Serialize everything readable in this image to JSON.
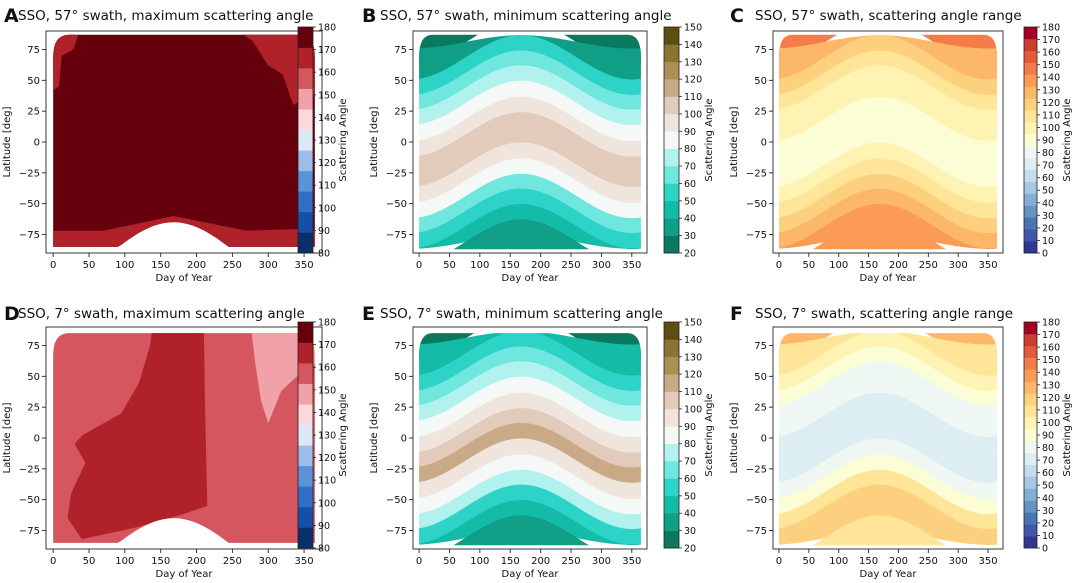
{
  "chart_data": [
    {
      "type": "heatmap",
      "panel_letter": "A",
      "title": "SSO, 57° swath, maximum scattering angle",
      "xlabel": "Day of Year",
      "ylabel": "Latitude [deg]",
      "xticks": [
        "0",
        "50",
        "100",
        "150",
        "200",
        "250",
        "300",
        "350"
      ],
      "yticks": [
        "75",
        "50",
        "25",
        "0",
        "−25",
        "−50",
        "−75"
      ],
      "xlim": [
        -10,
        375
      ],
      "ylim": [
        -90,
        90
      ],
      "colorbar_label": "Scattering Angle",
      "colorbar_ticks": [
        "80",
        "90",
        "100",
        "110",
        "120",
        "130",
        "140",
        "150",
        "160",
        "170",
        "180"
      ],
      "colorbar_range": [
        80,
        180
      ],
      "colormap": [
        "#08306b",
        "#1650a6",
        "#2f6fc5",
        "#5b93d8",
        "#9cbce9",
        "#dde7f7",
        "#fadadb",
        "#f2a1a8",
        "#d6565f",
        "#b0212a",
        "#67000d"
      ],
      "background_color": "#67000d",
      "overlay_colors": [
        "#b0212a"
      ],
      "lat_top_edge": 87,
      "south_bound": {
        "start": -85,
        "peak": -65,
        "peak_day": 168
      }
    },
    {
      "type": "heatmap",
      "panel_letter": "B",
      "title": "SSO, 57° swath, minimum scattering angle",
      "xlabel": "Day of Year",
      "ylabel": "Latitude [deg]",
      "xticks": [
        "0",
        "50",
        "100",
        "150",
        "200",
        "250",
        "300",
        "350"
      ],
      "yticks": [
        "75",
        "50",
        "25",
        "0",
        "−25",
        "−50",
        "−75"
      ],
      "xlim": [
        -10,
        375
      ],
      "ylim": [
        -90,
        90
      ],
      "colorbar_label": "Scattering Angle",
      "colorbar_ticks": [
        "20",
        "30",
        "40",
        "50",
        "60",
        "70",
        "80",
        "90",
        "100",
        "110",
        "120",
        "130",
        "140",
        "150"
      ],
      "colorbar_range": [
        20,
        150
      ],
      "colormap": [
        "#0a7a5e",
        "#109e86",
        "#14bba7",
        "#2cd3c6",
        "#6fe6de",
        "#b2f2ee",
        "#f4f8f7",
        "#efe5dd",
        "#e2cbbb",
        "#c9aa86",
        "#ad8e55",
        "#8c7330",
        "#5c4e12"
      ],
      "lat_top_edge": 87,
      "south_bound": {
        "start": -87,
        "peak": -87,
        "peak_day": 168
      },
      "band_levels": [
        22,
        38,
        52,
        64,
        75,
        85,
        95,
        105,
        108,
        95,
        82,
        68,
        55,
        45,
        38
      ],
      "band_latitudes": [
        87,
        75,
        62,
        50,
        38,
        25,
        12,
        0,
        -12,
        -25,
        -38,
        -50,
        -62,
        -75,
        -87
      ]
    },
    {
      "type": "heatmap",
      "panel_letter": "C",
      "title": "SSO, 57° swath, scattering angle range",
      "xlabel": "Day of Year",
      "ylabel": "Latitude [deg]",
      "xticks": [
        "0",
        "50",
        "100",
        "150",
        "200",
        "250",
        "300",
        "350"
      ],
      "yticks": [
        "75",
        "50",
        "25",
        "0",
        "−25",
        "−50",
        "−75"
      ],
      "xlim": [
        -10,
        375
      ],
      "ylim": [
        -90,
        90
      ],
      "colorbar_label": "Scattering Angle",
      "colorbar_ticks": [
        "0",
        "10",
        "20",
        "30",
        "40",
        "50",
        "60",
        "70",
        "80",
        "90",
        "100",
        "110",
        "120",
        "130",
        "140",
        "150",
        "160",
        "170",
        "180"
      ],
      "colorbar_range": [
        0,
        180
      ],
      "colormap": [
        "#313695",
        "#3f58a7",
        "#4a74b4",
        "#6693c4",
        "#85aed4",
        "#a5c7e2",
        "#c3ddec",
        "#dcedf3",
        "#eef7f2",
        "#fbfdd5",
        "#fef3b3",
        "#fee597",
        "#fdd080",
        "#fdb768",
        "#fb9b55",
        "#f67b4a",
        "#e55a3b",
        "#cf3b2f",
        "#a50026"
      ],
      "lat_top_edge": 87,
      "south_bound": {
        "start": -87,
        "peak": -87,
        "peak_day": 168
      },
      "band_levels": [
        150,
        130,
        118,
        110,
        102,
        95,
        90,
        88,
        92,
        100,
        110,
        122,
        132,
        138,
        140
      ],
      "band_latitudes": [
        87,
        75,
        62,
        50,
        38,
        25,
        12,
        0,
        -12,
        -25,
        -38,
        -50,
        -62,
        -75,
        -87
      ]
    },
    {
      "type": "heatmap",
      "panel_letter": "D",
      "title": "SSO, 7° swath, maximum scattering angle",
      "xlabel": "Day of Year",
      "ylabel": "Latitude [deg]",
      "xticks": [
        "0",
        "50",
        "100",
        "150",
        "200",
        "250",
        "300",
        "350"
      ],
      "yticks": [
        "75",
        "50",
        "25",
        "0",
        "−25",
        "−50",
        "−75"
      ],
      "xlim": [
        -10,
        375
      ],
      "ylim": [
        -90,
        90
      ],
      "colorbar_label": "Scattering Angle",
      "colorbar_ticks": [
        "80",
        "90",
        "100",
        "110",
        "120",
        "130",
        "140",
        "150",
        "160",
        "170",
        "180"
      ],
      "colorbar_range": [
        80,
        180
      ],
      "colormap": [
        "#08306b",
        "#1650a6",
        "#2f6fc5",
        "#5b93d8",
        "#9cbce9",
        "#dde7f7",
        "#fadadb",
        "#f2a1a8",
        "#d6565f",
        "#b0212a",
        "#67000d"
      ],
      "background_color": "#d6565f",
      "overlay_colors": [
        "#b0212a",
        "#f2a1a8"
      ],
      "lat_top_edge": 85,
      "south_bound": {
        "start": -85,
        "peak": -65,
        "peak_day": 168
      }
    },
    {
      "type": "heatmap",
      "panel_letter": "E",
      "title": "SSO, 7° swath, minimum scattering angle",
      "xlabel": "Day of Year",
      "ylabel": "Latitude [deg]",
      "xticks": [
        "0",
        "50",
        "100",
        "150",
        "200",
        "250",
        "300",
        "350"
      ],
      "yticks": [
        "75",
        "50",
        "25",
        "0",
        "−25",
        "−50",
        "−75"
      ],
      "xlim": [
        -10,
        375
      ],
      "ylim": [
        -90,
        90
      ],
      "colorbar_label": "Scattering Angle",
      "colorbar_ticks": [
        "20",
        "30",
        "40",
        "50",
        "60",
        "70",
        "80",
        "90",
        "100",
        "110",
        "120",
        "130",
        "140",
        "150"
      ],
      "colorbar_range": [
        20,
        150
      ],
      "colormap": [
        "#0a7a5e",
        "#109e86",
        "#14bba7",
        "#2cd3c6",
        "#6fe6de",
        "#b2f2ee",
        "#f4f8f7",
        "#efe5dd",
        "#e2cbbb",
        "#c9aa86",
        "#ad8e55",
        "#8c7330",
        "#5c4e12"
      ],
      "lat_top_edge": 85,
      "south_bound": {
        "start": -87,
        "peak": -87,
        "peak_day": 168
      },
      "band_levels": [
        25,
        40,
        55,
        68,
        78,
        88,
        98,
        108,
        110,
        98,
        85,
        70,
        55,
        45,
        38
      ],
      "band_latitudes": [
        87,
        75,
        62,
        50,
        38,
        25,
        12,
        0,
        -12,
        -25,
        -38,
        -50,
        -62,
        -75,
        -87
      ]
    },
    {
      "type": "heatmap",
      "panel_letter": "F",
      "title": "SSO, 7° swath, scattering angle range",
      "xlabel": "Day of Year",
      "ylabel": "Latitude [deg]",
      "xticks": [
        "0",
        "50",
        "100",
        "150",
        "200",
        "250",
        "300",
        "350"
      ],
      "yticks": [
        "75",
        "50",
        "25",
        "0",
        "−25",
        "−50",
        "−75"
      ],
      "xlim": [
        -10,
        375
      ],
      "ylim": [
        -90,
        90
      ],
      "colorbar_label": "Scattering Angle",
      "colorbar_ticks": [
        "0",
        "10",
        "20",
        "30",
        "40",
        "50",
        "60",
        "70",
        "80",
        "90",
        "100",
        "110",
        "120",
        "130",
        "140",
        "150",
        "160",
        "170",
        "180"
      ],
      "colorbar_range": [
        0,
        180
      ],
      "colormap": [
        "#313695",
        "#3f58a7",
        "#4a74b4",
        "#6693c4",
        "#85aed4",
        "#a5c7e2",
        "#c3ddec",
        "#dcedf3",
        "#eef7f2",
        "#fbfdd5",
        "#fef3b3",
        "#fee597",
        "#fdd080",
        "#fdb768",
        "#fb9b55",
        "#f67b4a",
        "#e55a3b",
        "#cf3b2f",
        "#a50026"
      ],
      "lat_top_edge": 85,
      "south_bound": {
        "start": -87,
        "peak": -87,
        "peak_day": 168
      },
      "band_levels": [
        125,
        110,
        100,
        92,
        85,
        78,
        72,
        68,
        70,
        80,
        92,
        105,
        115,
        118,
        112
      ],
      "band_latitudes": [
        87,
        75,
        62,
        50,
        38,
        25,
        12,
        0,
        -12,
        -25,
        -38,
        -50,
        -62,
        -75,
        -87
      ]
    }
  ]
}
